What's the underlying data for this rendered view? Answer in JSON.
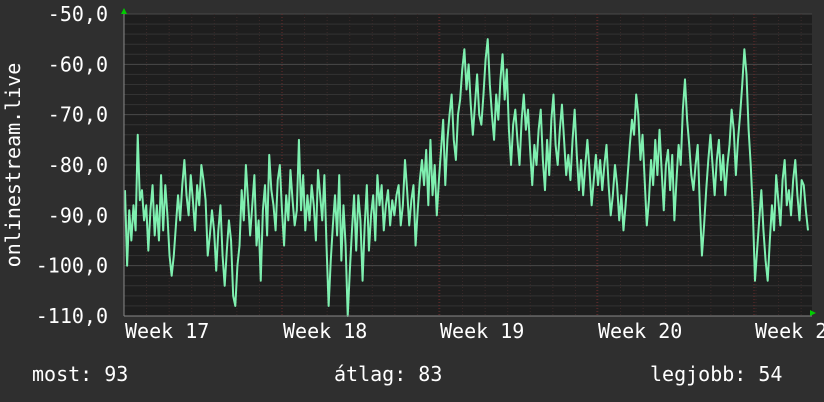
{
  "chart_data": {
    "type": "line",
    "ylabel": "onlinestream.live",
    "ylim": [
      -110,
      -50
    ],
    "yticks": [
      -50,
      -60,
      -70,
      -80,
      -90,
      -100,
      -110
    ],
    "ytick_labels": [
      "-50,0",
      "-60,0",
      "-70,0",
      "-80,0",
      "-90,0",
      "-100,0",
      "-110,0"
    ],
    "xticks": [
      "Week 17",
      "Week 18",
      "Week 19",
      "Week 20",
      "Week 2"
    ],
    "grid": true,
    "colors": {
      "background": "#2f2f2f",
      "plot_background": "#1e1e1e",
      "line": "#7ff0b0",
      "grid": "#3a3a3a",
      "axis_arrow": "#00cc00"
    },
    "series": [
      {
        "values": [
          -85,
          -100,
          -89,
          -95,
          -88,
          -93,
          -74,
          -87,
          -85,
          -91,
          -88,
          -97,
          -89,
          -84,
          -94,
          -88,
          -95,
          -82,
          -93,
          -84,
          -90,
          -98,
          -102,
          -98,
          -92,
          -86,
          -91,
          -84,
          -79,
          -86,
          -90,
          -82,
          -87,
          -93,
          -84,
          -88,
          -80,
          -83,
          -87,
          -98,
          -94,
          -89,
          -93,
          -101,
          -93,
          -88,
          -98,
          -104,
          -97,
          -91,
          -95,
          -106,
          -108,
          -100,
          -96,
          -85,
          -91,
          -80,
          -87,
          -94,
          -88,
          -82,
          -96,
          -91,
          -103,
          -89,
          -84,
          -94,
          -78,
          -85,
          -88,
          -93,
          -83,
          -80,
          -89,
          -96,
          -86,
          -91,
          -81,
          -87,
          -92,
          -89,
          -75,
          -89,
          -82,
          -93,
          -86,
          -91,
          -84,
          -88,
          -95,
          -81,
          -86,
          -91,
          -82,
          -96,
          -108,
          -99,
          -92,
          -86,
          -94,
          -82,
          -99,
          -88,
          -96,
          -110,
          -101,
          -93,
          -86,
          -97,
          -86,
          -91,
          -103,
          -92,
          -84,
          -97,
          -90,
          -86,
          -95,
          -82,
          -88,
          -84,
          -93,
          -88,
          -85,
          -92,
          -87,
          -90,
          -86,
          -84,
          -92,
          -88,
          -79,
          -85,
          -92,
          -87,
          -84,
          -96,
          -89,
          -83,
          -79,
          -84,
          -77,
          -88,
          -75,
          -86,
          -80,
          -90,
          -83,
          -77,
          -71,
          -84,
          -75,
          -70,
          -66,
          -75,
          -79,
          -70,
          -67,
          -61,
          -57,
          -65,
          -60,
          -68,
          -74,
          -68,
          -62,
          -70,
          -72,
          -66,
          -59,
          -55,
          -64,
          -70,
          -75,
          -66,
          -71,
          -63,
          -58,
          -67,
          -61,
          -73,
          -80,
          -72,
          -69,
          -75,
          -80,
          -71,
          -66,
          -73,
          -69,
          -77,
          -84,
          -76,
          -80,
          -73,
          -69,
          -79,
          -85,
          -75,
          -82,
          -71,
          -66,
          -76,
          -80,
          -73,
          -68,
          -75,
          -82,
          -78,
          -83,
          -75,
          -69,
          -78,
          -85,
          -79,
          -86,
          -80,
          -75,
          -81,
          -88,
          -83,
          -78,
          -84,
          -79,
          -85,
          -80,
          -76,
          -84,
          -90,
          -86,
          -80,
          -84,
          -91,
          -86,
          -93,
          -88,
          -82,
          -76,
          -71,
          -74,
          -66,
          -70,
          -79,
          -74,
          -83,
          -92,
          -87,
          -79,
          -84,
          -75,
          -82,
          -73,
          -81,
          -89,
          -80,
          -77,
          -85,
          -78,
          -91,
          -83,
          -76,
          -80,
          -69,
          -63,
          -71,
          -76,
          -82,
          -85,
          -80,
          -76,
          -88,
          -98,
          -92,
          -85,
          -79,
          -74,
          -80,
          -86,
          -79,
          -75,
          -83,
          -78,
          -86,
          -80,
          -76,
          -69,
          -73,
          -82,
          -75,
          -70,
          -64,
          -57,
          -62,
          -73,
          -80,
          -89,
          -103,
          -97,
          -91,
          -85,
          -93,
          -99,
          -103,
          -95,
          -88,
          -93,
          -82,
          -87,
          -92,
          -83,
          -79,
          -88,
          -85,
          -90,
          -83,
          -79,
          -86,
          -91,
          -83,
          -84,
          -89,
          -93
        ]
      }
    ]
  },
  "footer": {
    "now": "most: 93",
    "avg": "átlag: 83",
    "best": "legjobb: 54"
  }
}
